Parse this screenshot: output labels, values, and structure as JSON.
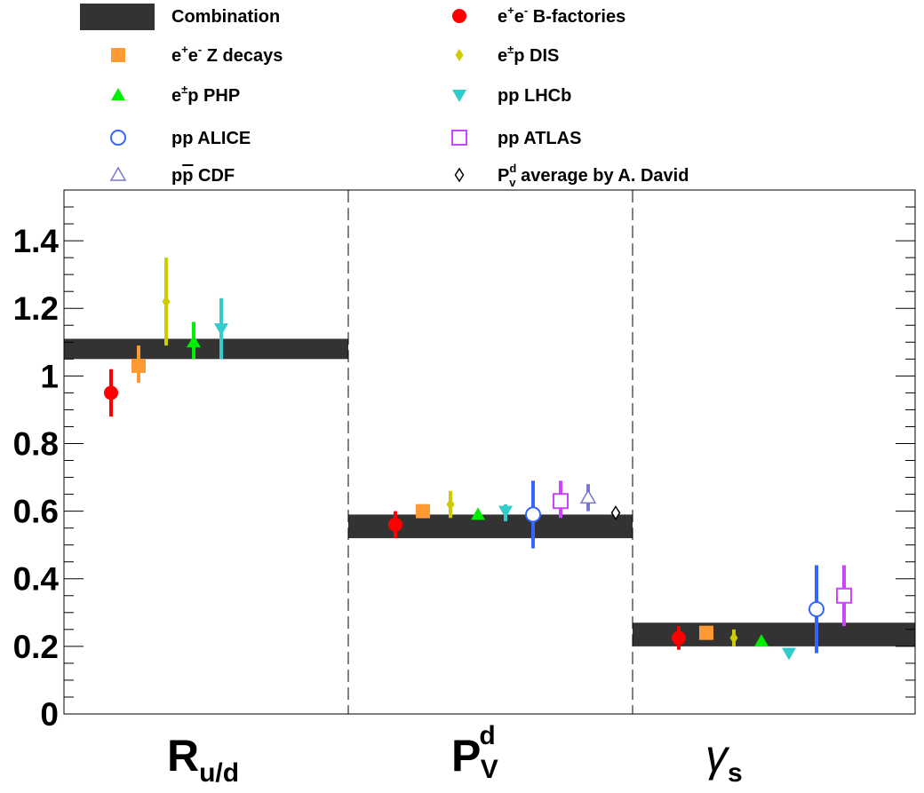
{
  "chart_data": {
    "type": "scatter",
    "title": "",
    "ylabel": "",
    "ylim": [
      0,
      1.55
    ],
    "yticks": [
      "0",
      "0.2",
      "0.4",
      "0.6",
      "0.8",
      "1",
      "1.2",
      "1.4"
    ],
    "grid": false,
    "legend_position": "top",
    "categories": [
      {
        "id": "Rud",
        "label_main": "R",
        "label_sub": "u/d",
        "label_sup": ""
      },
      {
        "id": "Pv",
        "label_main": "P",
        "label_sub": "V",
        "label_sup": "d"
      },
      {
        "id": "gs",
        "label_main": "γ",
        "label_sub": "s",
        "label_sup": ""
      }
    ],
    "combination": {
      "name": "Combination",
      "color": "#333333",
      "bands": [
        {
          "category": "Rud",
          "low": 1.05,
          "high": 1.11
        },
        {
          "category": "Pv",
          "low": 0.52,
          "high": 0.59
        },
        {
          "category": "gs",
          "low": 0.2,
          "high": 0.27
        }
      ]
    },
    "series": [
      {
        "key": "bfact",
        "name": "e+e- B-factories",
        "color": "#ff0000",
        "marker": "circle-filled",
        "points": [
          {
            "category": "Rud",
            "slot": 0,
            "value": 0.95,
            "err_low": 0.88,
            "err_high": 1.02
          },
          {
            "category": "Pv",
            "slot": 0,
            "value": 0.56,
            "err_low": 0.52,
            "err_high": 0.6
          },
          {
            "category": "gs",
            "slot": 0,
            "value": 0.225,
            "err_low": 0.19,
            "err_high": 0.26
          }
        ]
      },
      {
        "key": "zdec",
        "name": "e+e- Z decays",
        "color": "#ff9933",
        "marker": "square-filled",
        "points": [
          {
            "category": "Rud",
            "slot": 1,
            "value": 1.03,
            "err_low": 0.98,
            "err_high": 1.09
          },
          {
            "category": "Pv",
            "slot": 1,
            "value": 0.6,
            "err_low": 0.59,
            "err_high": 0.61
          },
          {
            "category": "gs",
            "slot": 1,
            "value": 0.24,
            "err_low": 0.23,
            "err_high": 0.25
          }
        ]
      },
      {
        "key": "dis",
        "name": "e±p DIS",
        "color": "#cccc00",
        "marker": "diamond-filled",
        "points": [
          {
            "category": "Rud",
            "slot": 2,
            "value": 1.22,
            "err_low": 1.09,
            "err_high": 1.35
          },
          {
            "category": "Pv",
            "slot": 2,
            "value": 0.62,
            "err_low": 0.58,
            "err_high": 0.66
          },
          {
            "category": "gs",
            "slot": 2,
            "value": 0.225,
            "err_low": 0.2,
            "err_high": 0.25
          }
        ]
      },
      {
        "key": "php",
        "name": "e±p PHP",
        "color": "#00ee00",
        "marker": "triangle-up-filled",
        "points": [
          {
            "category": "Rud",
            "slot": 3,
            "value": 1.1,
            "err_low": 1.05,
            "err_high": 1.16
          },
          {
            "category": "Pv",
            "slot": 3,
            "value": 0.59,
            "err_low": 0.58,
            "err_high": 0.6
          },
          {
            "category": "gs",
            "slot": 3,
            "value": 0.215,
            "err_low": 0.205,
            "err_high": 0.225
          }
        ]
      },
      {
        "key": "lhcb",
        "name": "pp LHCb",
        "color": "#33cccc",
        "marker": "triangle-down-filled",
        "points": [
          {
            "category": "Rud",
            "slot": 4,
            "value": 1.14,
            "err_low": 1.05,
            "err_high": 1.23
          },
          {
            "category": "Pv",
            "slot": 4,
            "value": 0.6,
            "err_low": 0.57,
            "err_high": 0.62
          },
          {
            "category": "gs",
            "slot": 4,
            "value": 0.18,
            "err_low": 0.17,
            "err_high": 0.19
          }
        ]
      },
      {
        "key": "alice",
        "name": "pp ALICE",
        "color": "#3366ff",
        "marker": "circle-open",
        "points": [
          {
            "category": "Pv",
            "slot": 5,
            "value": 0.59,
            "err_low": 0.49,
            "err_high": 0.69
          },
          {
            "category": "gs",
            "slot": 5,
            "value": 0.31,
            "err_low": 0.18,
            "err_high": 0.44
          }
        ]
      },
      {
        "key": "atlas",
        "name": "pp ATLAS",
        "color": "#cc44ff",
        "marker": "square-open",
        "points": [
          {
            "category": "Pv",
            "slot": 6,
            "value": 0.63,
            "err_low": 0.58,
            "err_high": 0.69
          },
          {
            "category": "gs",
            "slot": 6,
            "value": 0.35,
            "err_low": 0.26,
            "err_high": 0.44
          }
        ]
      },
      {
        "key": "cdf",
        "name": "pp̄ CDF",
        "color": "#7777cc",
        "marker": "triangle-up-open",
        "points": [
          {
            "category": "Pv",
            "slot": 7,
            "value": 0.64,
            "err_low": 0.6,
            "err_high": 0.68
          }
        ]
      },
      {
        "key": "david",
        "name": "Pvd average by A. David",
        "color": "#000000",
        "marker": "diamond-open",
        "points": [
          {
            "category": "Pv",
            "slot": 8,
            "value": 0.595,
            "err_low": 0.595,
            "err_high": 0.595
          }
        ]
      }
    ]
  },
  "legend": {
    "combination": "Combination",
    "bfact": {
      "base": "e",
      "sup1": "+",
      "mid": "e",
      "sup2": "-",
      "rest": " B-factories"
    },
    "zdec": {
      "base": "e",
      "sup1": "+",
      "mid": "e",
      "sup2": "-",
      "rest": " Z decays"
    },
    "dis": {
      "base": "e",
      "sup1": "±",
      "rest": "p DIS"
    },
    "php": {
      "base": "e",
      "sup1": "±",
      "rest": "p PHP"
    },
    "lhcb": "pp LHCb",
    "alice": "pp ALICE",
    "atlas": "pp ATLAS",
    "cdf": {
      "p1": "p",
      "pbar": "p",
      "rest": " CDF"
    },
    "david": {
      "base": "P",
      "sup": "d",
      "sub": "v",
      "rest": " average by A. David"
    }
  }
}
